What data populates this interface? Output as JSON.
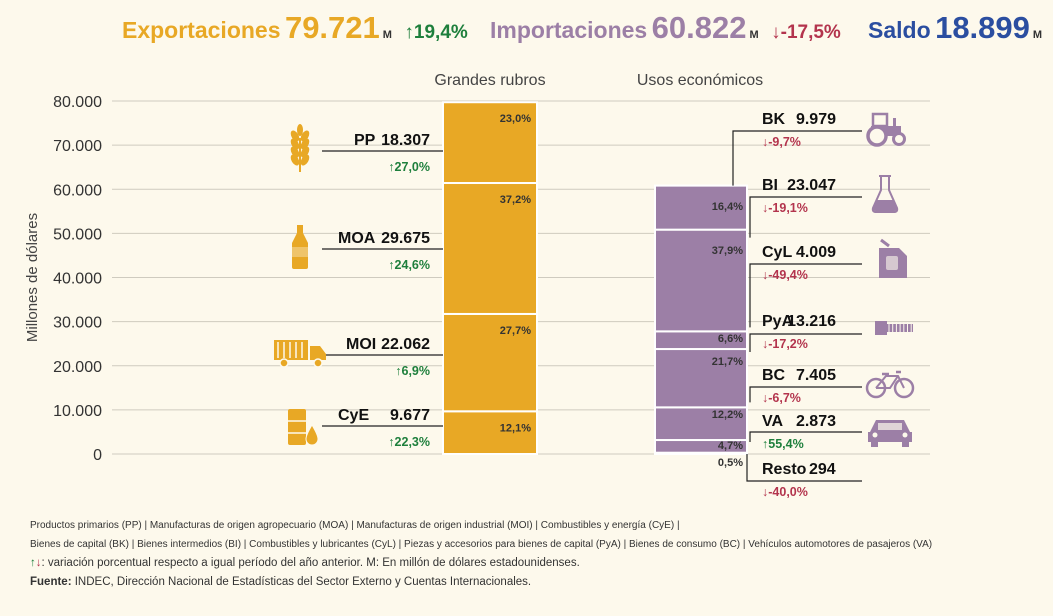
{
  "header": {
    "exportaciones": {
      "label": "Exportaciones",
      "value": "79.721",
      "unit": "M",
      "change": "19,4%",
      "dir": "up"
    },
    "importaciones": {
      "label": "Importaciones",
      "value": "60.822",
      "unit": "M",
      "change": "-17,5%",
      "dir": "down"
    },
    "saldo": {
      "label": "Saldo",
      "value": "18.899",
      "unit": "M"
    }
  },
  "colors": {
    "export": "#e8a825",
    "import": "#9c7fa6",
    "saldo": "#2b4ea0",
    "green": "#1e7f3c",
    "red": "#b3344d",
    "background": "#fdf9ec",
    "grid": "#cfcbbf"
  },
  "chart_data": {
    "type": "bar",
    "ylabel": "Millones de dólares",
    "ylim": [
      0,
      80000
    ],
    "yticks": [
      "0",
      "10.000",
      "20.000",
      "30.000",
      "40.000",
      "50.000",
      "60.000",
      "70.000",
      "80.000"
    ],
    "grid": true,
    "categories": [
      "Grandes rubros",
      "Usos económicos"
    ],
    "exports": [
      {
        "code": "PP",
        "value": 18307,
        "value_label": "18.307",
        "share": "23,0%",
        "change": "27,0%",
        "dir": "up",
        "icon": "wheat-icon"
      },
      {
        "code": "MOA",
        "value": 29675,
        "value_label": "29.675",
        "share": "37,2%",
        "change": "24,6%",
        "dir": "up",
        "icon": "bottle-icon"
      },
      {
        "code": "MOI",
        "value": 22062,
        "value_label": "22.062",
        "share": "27,7%",
        "change": "6,9%",
        "dir": "up",
        "icon": "truck-icon"
      },
      {
        "code": "CyE",
        "value": 9677,
        "value_label": "9.677",
        "share": "12,1%",
        "change": "22,3%",
        "dir": "up",
        "icon": "fuel-barrel-icon"
      }
    ],
    "imports": [
      {
        "code": "BK",
        "value": 9979,
        "value_label": "9.979",
        "share": "16,4%",
        "change": "-9,7%",
        "dir": "down",
        "icon": "tractor-icon"
      },
      {
        "code": "BI",
        "value": 23047,
        "value_label": "23.047",
        "share": "37,9%",
        "change": "-19,1%",
        "dir": "down",
        "icon": "flask-icon"
      },
      {
        "code": "CyL",
        "value": 4009,
        "value_label": "4.009",
        "share": "6,6%",
        "change": "-49,4%",
        "dir": "down",
        "icon": "jerrycan-icon"
      },
      {
        "code": "PyA",
        "value": 13216,
        "value_label": "13.216",
        "share": "21,7%",
        "change": "-17,2%",
        "dir": "down",
        "icon": "bolt-icon"
      },
      {
        "code": "BC",
        "value": 7405,
        "value_label": "7.405",
        "share": "12,2%",
        "change": "-6,7%",
        "dir": "down",
        "icon": "bicycle-icon"
      },
      {
        "code": "VA",
        "value": 2873,
        "value_label": "2.873",
        "share": "4,7%",
        "change": "55,4%",
        "dir": "up",
        "icon": "car-icon"
      },
      {
        "code": "Resto",
        "value": 294,
        "value_label": "294",
        "share": "0,5%",
        "change": "-40,0%",
        "dir": "down"
      }
    ]
  },
  "footer": {
    "line1": "Productos primarios (PP) | Manufacturas de origen agropecuario (MOA) | Manufacturas de origen industrial (MOI) | Combustibles y energía (CyE) |",
    "line2": "Bienes de capital (BK) | Bienes intermedios (BI) | Combustibles y lubricantes (CyL) | Piezas y accesorios para bienes de capital (PyA) | Bienes de consumo (BC) | Vehículos automotores de pasajeros (VA)",
    "line3": ": variación porcentual respecto a igual período del año anterior. M: En millón de dólares estadounidenses.",
    "source_label": "Fuente:",
    "source_text": "INDEC, Dirección Nacional de Estadísticas del Sector Externo y Cuentas Internacionales."
  }
}
